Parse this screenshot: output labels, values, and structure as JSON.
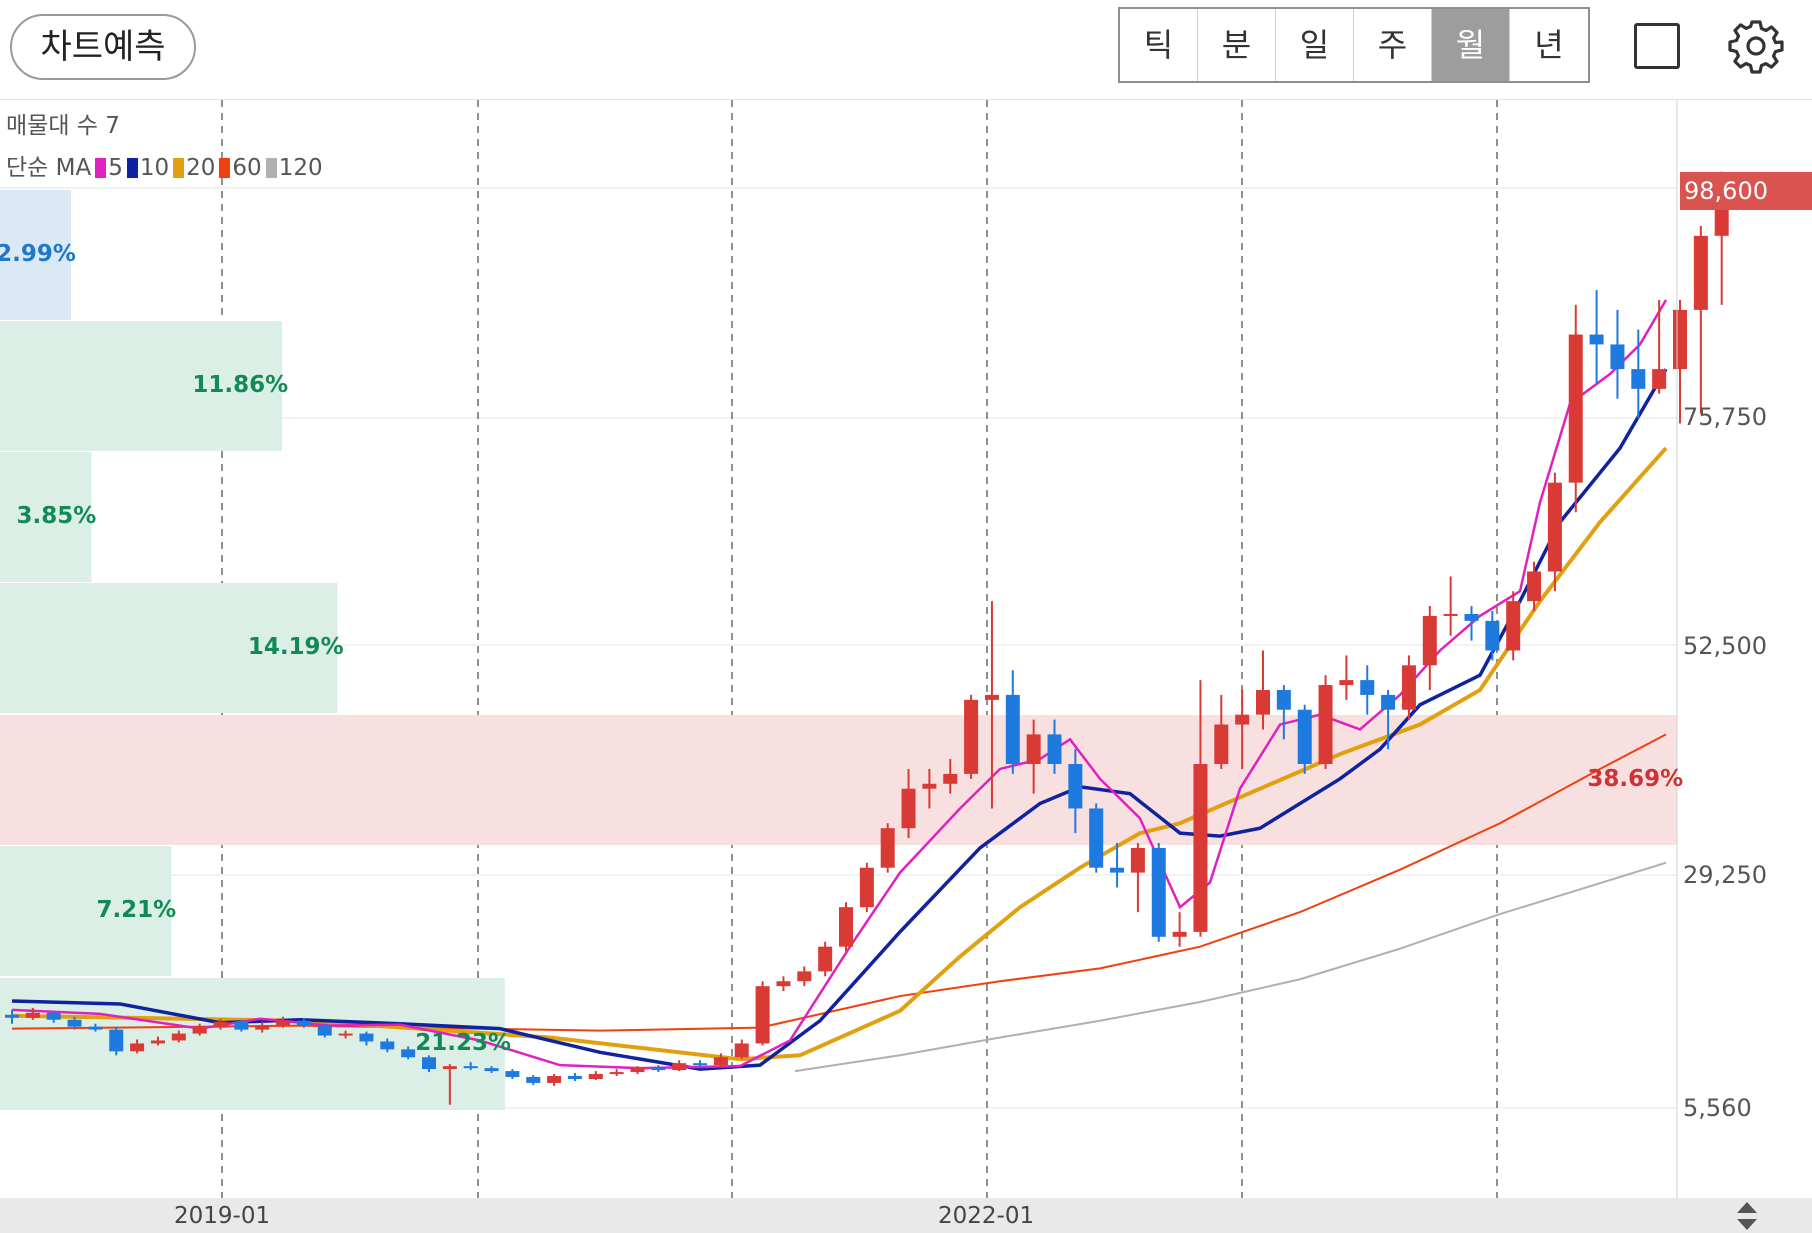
{
  "header": {
    "predict_label": "차트예측",
    "period_tabs": [
      {
        "label": "틱",
        "active": false
      },
      {
        "label": "분",
        "active": false
      },
      {
        "label": "일",
        "active": false
      },
      {
        "label": "주",
        "active": false
      },
      {
        "label": "월",
        "active": true
      },
      {
        "label": "년",
        "active": false
      }
    ]
  },
  "legend": {
    "volume_profile_label": "매물대 수 7",
    "ma_label": "단순 MA",
    "ma_periods": [
      {
        "value": "5",
        "color": "#e020c0"
      },
      {
        "value": "10",
        "color": "#10239e"
      },
      {
        "value": "20",
        "color": "#e0a010"
      },
      {
        "value": "60",
        "color": "#f04010"
      },
      {
        "value": "120",
        "color": "#b0b0b0"
      }
    ]
  },
  "price_axis": {
    "labels": [
      "75,750",
      "52,500",
      "29,250",
      "5,560"
    ],
    "current_price": "98,600"
  },
  "time_axis": {
    "labels": [
      "2019-01",
      "2022-01"
    ]
  },
  "volume_profile": [
    {
      "pct_label": "2.99%",
      "pct": 2.99,
      "highlight": "blue"
    },
    {
      "pct_label": "11.86%",
      "pct": 11.86,
      "highlight": "none"
    },
    {
      "pct_label": "3.85%",
      "pct": 3.85,
      "highlight": "none"
    },
    {
      "pct_label": "14.19%",
      "pct": 14.19,
      "highlight": "none"
    },
    {
      "pct_label": "38.69%",
      "pct": 38.69,
      "highlight": "red"
    },
    {
      "pct_label": "7.21%",
      "pct": 7.21,
      "highlight": "none"
    },
    {
      "pct_label": "21.23%",
      "pct": 21.23,
      "highlight": "none"
    }
  ],
  "colors": {
    "up": "#d93a35",
    "down": "#1f7ae0",
    "vp_green": "#dcefe6",
    "vp_blue": "#dbe9f6",
    "vp_red": "#f8dfe0",
    "vp_green_text": "#118a55",
    "vp_blue_text": "#1f78c8",
    "vp_red_text": "#cc3333"
  }
}
